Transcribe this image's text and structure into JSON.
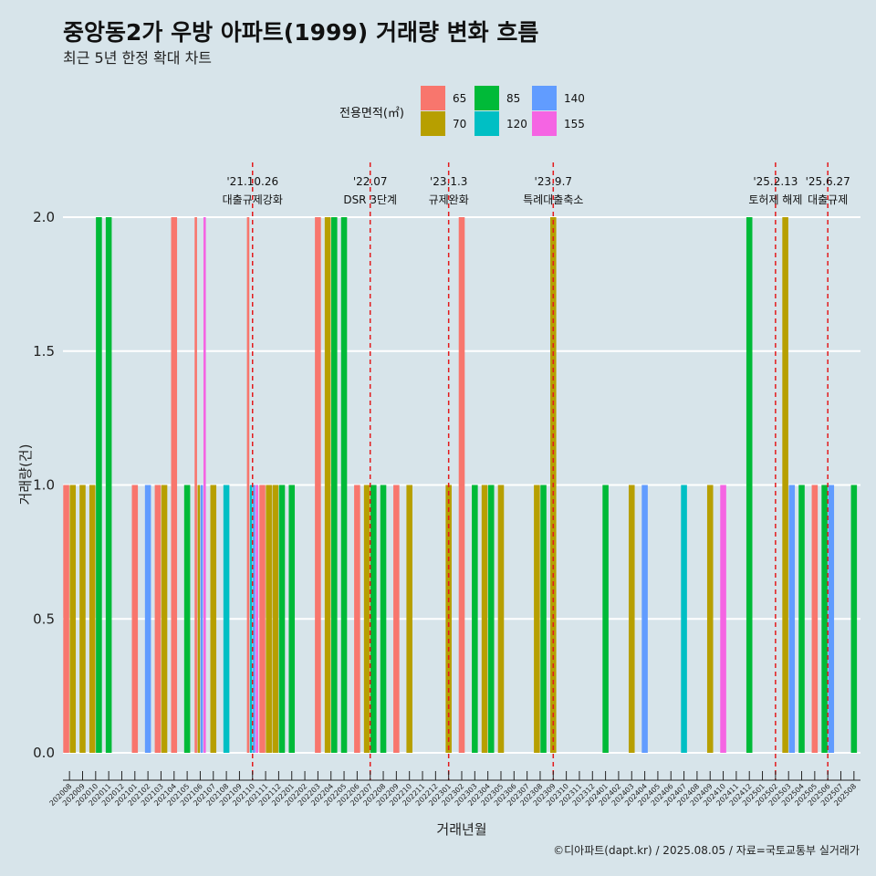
{
  "chart_data": {
    "type": "bar",
    "title": "중앙동2가 우방 아파트(1999) 거래량 변화 흐름",
    "subtitle": "최근 5년 한정 확대 차트",
    "xlabel": "거래년월",
    "ylabel": "거래량(건)",
    "ylim": [
      0,
      2
    ],
    "yticks": [
      "0.0",
      "0.5",
      "1.0",
      "1.5",
      "2.0"
    ],
    "grid": "horizontal",
    "legend": {
      "title": "전용면적(㎡)",
      "position": "top",
      "entries": [
        {
          "label": "65",
          "color": "#F8766D"
        },
        {
          "label": "70",
          "color": "#B79F00"
        },
        {
          "label": "85",
          "color": "#00BA38"
        },
        {
          "label": "120",
          "color": "#00BFC4"
        },
        {
          "label": "140",
          "color": "#619CFF"
        },
        {
          "label": "155",
          "color": "#F564E3"
        }
      ]
    },
    "categories": [
      "202008",
      "202009",
      "202010",
      "202011",
      "202012",
      "202101",
      "202102",
      "202103",
      "202104",
      "202105",
      "202106",
      "202107",
      "202108",
      "202109",
      "202110",
      "202111",
      "202112",
      "202201",
      "202202",
      "202203",
      "202204",
      "202205",
      "202206",
      "202207",
      "202208",
      "202209",
      "202210",
      "202211",
      "202212",
      "202301",
      "202302",
      "202303",
      "202304",
      "202305",
      "202306",
      "202307",
      "202308",
      "202309",
      "202310",
      "202311",
      "202312",
      "202401",
      "202402",
      "202403",
      "202404",
      "202405",
      "202406",
      "202407",
      "202408",
      "202409",
      "202410",
      "202411",
      "202412",
      "202501",
      "202502",
      "202503",
      "202504",
      "202505",
      "202506",
      "202507",
      "202508"
    ],
    "bars": [
      {
        "month": "202008",
        "values": {
          "65": 1,
          "70": 1
        }
      },
      {
        "month": "202009",
        "values": {
          "70": 1
        }
      },
      {
        "month": "202010",
        "values": {
          "70": 1,
          "85": 2
        }
      },
      {
        "month": "202011",
        "values": {
          "85": 2
        }
      },
      {
        "month": "202101",
        "values": {
          "65": 1
        }
      },
      {
        "month": "202102",
        "values": {
          "140": 1
        }
      },
      {
        "month": "202103",
        "values": {
          "65": 1,
          "70": 1
        }
      },
      {
        "month": "202104",
        "values": {
          "65": 2
        }
      },
      {
        "month": "202105",
        "values": {
          "85": 1
        }
      },
      {
        "month": "202106",
        "values": {
          "65": 2,
          "70": 1,
          "140": 1,
          "155": 2
        }
      },
      {
        "month": "202107",
        "values": {
          "70": 1
        }
      },
      {
        "month": "202108",
        "values": {
          "120": 1
        }
      },
      {
        "month": "202110",
        "values": {
          "65": 2,
          "120": 1,
          "140": 1,
          "155": 1
        }
      },
      {
        "month": "202111",
        "values": {
          "70": 1,
          "65": 1
        }
      },
      {
        "month": "202112",
        "values": {
          "70": 1,
          "85": 1
        }
      },
      {
        "month": "202201",
        "values": {
          "85": 1
        }
      },
      {
        "month": "202203",
        "values": {
          "65": 2
        }
      },
      {
        "month": "202204",
        "values": {
          "70": 2,
          "85": 2
        }
      },
      {
        "month": "202205",
        "values": {
          "85": 2
        }
      },
      {
        "month": "202206",
        "values": {
          "65": 1
        }
      },
      {
        "month": "202207",
        "values": {
          "70": 1,
          "85": 1
        }
      },
      {
        "month": "202208",
        "values": {
          "85": 1
        }
      },
      {
        "month": "202209",
        "values": {
          "65": 1
        }
      },
      {
        "month": "202210",
        "values": {
          "70": 1
        }
      },
      {
        "month": "202301",
        "values": {
          "70": 1
        }
      },
      {
        "month": "202302",
        "values": {
          "65": 2
        }
      },
      {
        "month": "202303",
        "values": {
          "85": 1
        }
      },
      {
        "month": "202304",
        "values": {
          "70": 1,
          "85": 1
        }
      },
      {
        "month": "202305",
        "values": {
          "70": 1
        }
      },
      {
        "month": "202308",
        "values": {
          "70": 1,
          "85": 1
        }
      },
      {
        "month": "202309",
        "values": {
          "70": 2
        }
      },
      {
        "month": "202401",
        "values": {
          "85": 1
        }
      },
      {
        "month": "202403",
        "values": {
          "70": 1
        }
      },
      {
        "month": "202404",
        "values": {
          "140": 1
        }
      },
      {
        "month": "202407",
        "values": {
          "120": 1
        }
      },
      {
        "month": "202409",
        "values": {
          "70": 1
        }
      },
      {
        "month": "202410",
        "values": {
          "155": 1
        }
      },
      {
        "month": "202412",
        "values": {
          "85": 2
        }
      },
      {
        "month": "202503",
        "values": {
          "70": 2,
          "140": 1
        }
      },
      {
        "month": "202504",
        "values": {
          "85": 1
        }
      },
      {
        "month": "202505",
        "values": {
          "65": 1
        }
      },
      {
        "month": "202506",
        "values": {
          "85": 1,
          "140": 1
        }
      },
      {
        "month": "202508",
        "values": {
          "85": 1
        }
      }
    ],
    "events": [
      {
        "date": "'21.10.26",
        "label": "대출규제강화",
        "month": "202110"
      },
      {
        "date": "'22.07",
        "label": "DSR 3단계",
        "month": "202207"
      },
      {
        "date": "'23.1.3",
        "label": "규제완화",
        "month": "202301"
      },
      {
        "date": "'23.9.7",
        "label": "특례대출축소",
        "month": "202309"
      },
      {
        "date": "'25.2.13",
        "label": "토허제 해제",
        "month": "202502"
      },
      {
        "date": "'25.6.27",
        "label": "대출규제",
        "month": "202506"
      }
    ],
    "caption": "©디아파트(dapt.kr) / 2025.08.05 / 자료=국토교통부 실거래가"
  }
}
